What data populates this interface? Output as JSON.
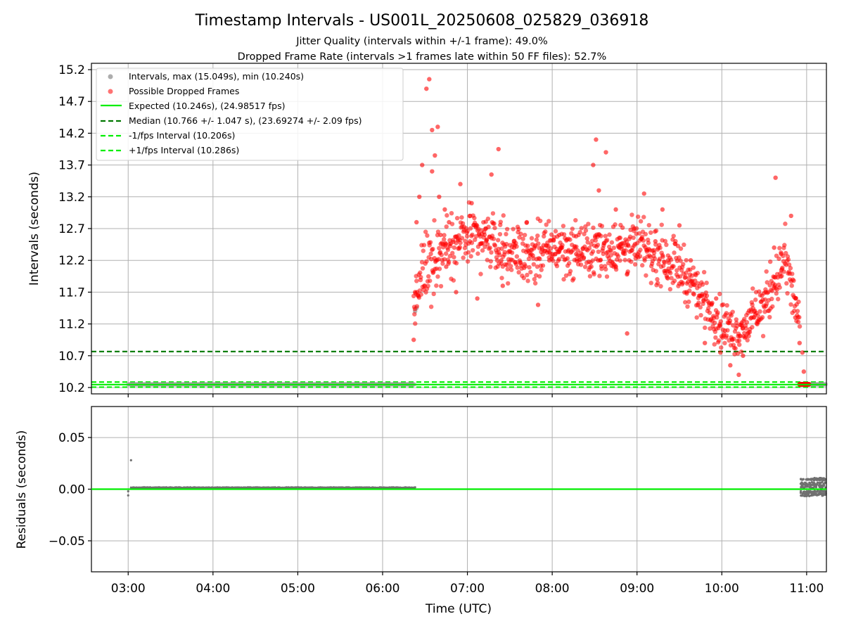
{
  "figure": {
    "title": "Timestamp Intervals - US001L_20250608_025829_036918",
    "subtitle_1": "Jitter Quality (intervals within +/-1 frame): 49.0%",
    "subtitle_2": "Dropped Frame Rate (intervals >1 frames late within 50 FF files): 52.7%"
  },
  "colors": {
    "interval_points": "#999999",
    "dropped_points": "#ff0000",
    "expected_line": "#00ee00",
    "median_line": "#007700",
    "fps_band_lines": "#00ee00",
    "residual_points": "#707070",
    "grid": "#b0b0b0"
  },
  "chart_data": [
    {
      "type": "scatter",
      "panel": "top",
      "ylabel": "Intervals (seconds)",
      "xlabel": "",
      "ylim": [
        10.1,
        15.3
      ],
      "yticks": [
        "10.2",
        "10.7",
        "11.2",
        "11.7",
        "12.2",
        "12.7",
        "13.2",
        "13.7",
        "14.2",
        "14.7",
        "15.2"
      ],
      "ytick_values": [
        10.2,
        10.7,
        11.2,
        11.7,
        12.2,
        12.7,
        13.2,
        13.7,
        14.2,
        14.7,
        15.2
      ],
      "xlim": [
        "02:34",
        "11:14"
      ],
      "xticks": [
        "03:00",
        "04:00",
        "05:00",
        "06:00",
        "07:00",
        "08:00",
        "09:00",
        "10:00",
        "11:00"
      ],
      "grid": true,
      "legend_position": "top-left",
      "legend": [
        "Intervals, max (15.049s), min (10.240s)",
        "Possible Dropped Frames",
        "Expected (10.246s), (24.98517 fps)",
        "Median (10.766 +/- 1.047 s), (23.69274 +/- 2.09 fps)",
        "-1/fps Interval (10.206s)",
        "+1/fps Interval (10.286s)"
      ],
      "reference_lines": {
        "expected": 10.246,
        "median": 10.766,
        "minus_1_fps": 10.206,
        "plus_1_fps": 10.286
      },
      "series": [
        {
          "name": "Intervals",
          "segments": [
            {
              "x_start": "03:00",
              "x_end": "06:23",
              "y": 10.25
            },
            {
              "x_start": "10:55",
              "x_end": "11:14",
              "y": 10.25
            }
          ],
          "x": [
            "06:23",
            "06:24"
          ],
          "y": [
            11.4,
            11.45
          ]
        },
        {
          "name": "Possible Dropped Frames",
          "x": [
            "06:22",
            "06:23",
            "06:24",
            "06:26",
            "06:28",
            "06:31",
            "06:33",
            "06:35",
            "06:35",
            "06:37",
            "06:39",
            "06:40",
            "06:41",
            "06:44",
            "06:45",
            "06:47",
            "06:52",
            "06:55",
            "07:03",
            "07:07",
            "07:13",
            "07:17",
            "07:22",
            "07:24",
            "07:25",
            "07:33",
            "07:42",
            "07:50",
            "07:58",
            "08:05",
            "08:17",
            "08:29",
            "08:31",
            "08:33",
            "08:34",
            "08:38",
            "08:45",
            "08:48",
            "08:53",
            "08:58",
            "09:05",
            "09:13",
            "09:18",
            "09:22",
            "09:30",
            "09:35",
            "09:38",
            "09:43",
            "09:48",
            "09:56",
            "09:59",
            "10:06",
            "10:12",
            "10:15",
            "10:21",
            "10:31",
            "10:37",
            "10:38",
            "10:42",
            "10:49",
            "10:52",
            "10:55",
            "10:57",
            "10:58"
          ],
          "y": [
            10.95,
            11.7,
            12.8,
            13.2,
            13.7,
            14.9,
            15.05,
            14.25,
            13.6,
            13.85,
            14.3,
            13.2,
            12.6,
            13.0,
            12.1,
            12.8,
            11.7,
            13.4,
            13.1,
            11.6,
            12.7,
            13.55,
            13.95,
            12.2,
            11.8,
            12.4,
            12.8,
            11.5,
            12.2,
            12.6,
            12.3,
            13.7,
            14.1,
            13.3,
            12.2,
            13.9,
            13.0,
            12.45,
            11.05,
            12.7,
            13.25,
            12.5,
            13.0,
            12.2,
            12.75,
            11.7,
            12.2,
            11.5,
            10.9,
            11.6,
            10.75,
            10.55,
            10.4,
            10.7,
            11.3,
            11.7,
            12.4,
            13.5,
            12.3,
            12.9,
            11.3,
            10.9,
            10.75,
            10.45
          ],
          "band": {
            "x": [
              "06:22",
              "06:30",
              "06:45",
              "07:00",
              "07:15",
              "07:30",
              "07:45",
              "08:00",
              "08:15",
              "08:30",
              "08:45",
              "09:00",
              "09:15",
              "09:30",
              "09:40",
              "09:50",
              "10:00",
              "10:10",
              "10:20",
              "10:30",
              "10:40",
              "10:45",
              "10:50",
              "10:55"
            ],
            "center": [
              11.45,
              12.1,
              12.45,
              12.55,
              12.5,
              12.35,
              12.3,
              12.4,
              12.35,
              12.35,
              12.4,
              12.4,
              12.3,
              12.1,
              11.8,
              11.5,
              11.2,
              11.05,
              11.25,
              11.5,
              12.0,
              12.2,
              11.7,
              11.2
            ],
            "spread": [
              0.35,
              0.55,
              0.45,
              0.4,
              0.4,
              0.4,
              0.4,
              0.38,
              0.38,
              0.38,
              0.4,
              0.4,
              0.4,
              0.4,
              0.35,
              0.35,
              0.35,
              0.32,
              0.33,
              0.38,
              0.4,
              0.45,
              0.4,
              0.35
            ]
          }
        },
        {
          "name": "Possible Dropped Frames (cluster near 10.25)",
          "x_start": "10:55",
          "x_end": "11:02",
          "y": 10.25
        }
      ]
    },
    {
      "type": "scatter",
      "panel": "bottom",
      "ylabel": "Residuals (seconds)",
      "xlabel": "Time (UTC)",
      "ylim": [
        -0.08,
        0.08
      ],
      "yticks": [
        "0.05",
        "0.00",
        "−0.05"
      ],
      "ytick_values": [
        0.05,
        0.0,
        -0.05
      ],
      "xlim": [
        "02:34",
        "11:14"
      ],
      "xticks": [
        "03:00",
        "04:00",
        "05:00",
        "06:00",
        "07:00",
        "08:00",
        "09:00",
        "10:00",
        "11:00"
      ],
      "grid": true,
      "zero_line": 0.0,
      "series": [
        {
          "name": "Residuals",
          "x": [
            "03:00",
            "03:00",
            "03:02"
          ],
          "y": [
            -0.006,
            -0.002,
            0.028
          ],
          "segments": [
            {
              "x_start": "03:02",
              "x_end": "06:23",
              "y": 0.0015
            }
          ],
          "cluster": {
            "x_start": "10:56",
            "x_end": "11:14",
            "y_values": [
              0.01,
              0.009,
              0.006,
              0.004,
              0.002,
              -0.002,
              -0.004,
              -0.006
            ]
          }
        }
      ]
    }
  ]
}
